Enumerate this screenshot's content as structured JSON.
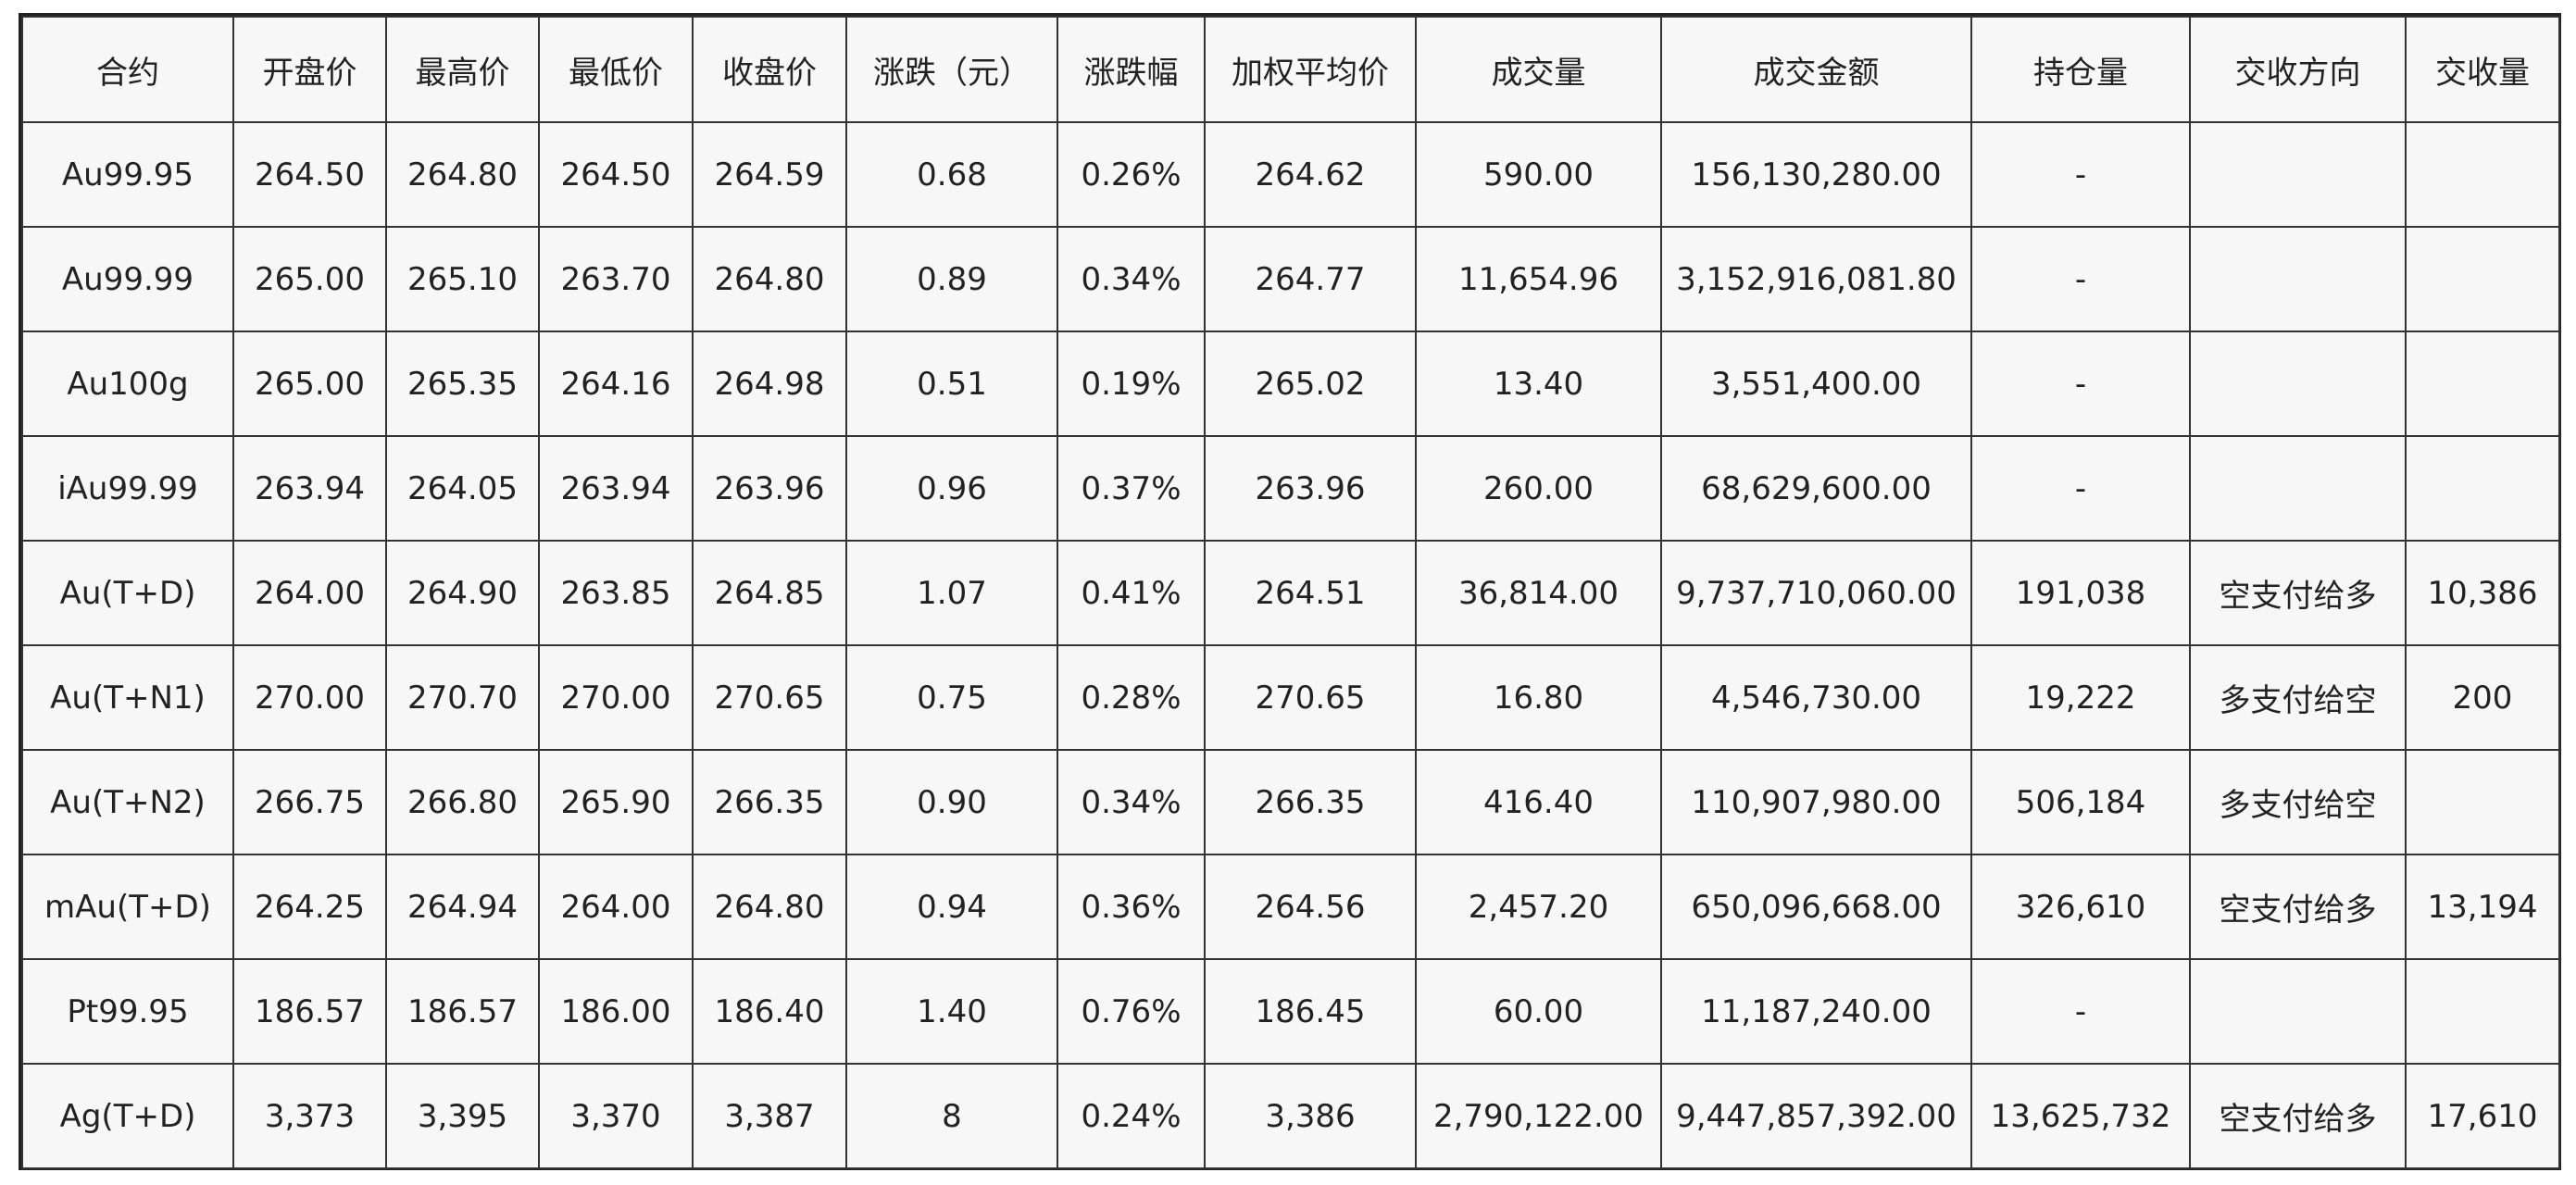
{
  "table": {
    "columns": [
      "合约",
      "开盘价",
      "最高价",
      "最低价",
      "收盘价",
      "涨跌（元）",
      "涨跌幅",
      "加权平均价",
      "成交量",
      "成交金额",
      "持仓量",
      "交收方向",
      "交收量"
    ],
    "rows": [
      [
        "Au99.95",
        "264.50",
        "264.80",
        "264.50",
        "264.59",
        "0.68",
        "0.26%",
        "264.62",
        "590.00",
        "156,130,280.00",
        "-",
        "",
        ""
      ],
      [
        "Au99.99",
        "265.00",
        "265.10",
        "263.70",
        "264.80",
        "0.89",
        "0.34%",
        "264.77",
        "11,654.96",
        "3,152,916,081.80",
        "-",
        "",
        ""
      ],
      [
        "Au100g",
        "265.00",
        "265.35",
        "264.16",
        "264.98",
        "0.51",
        "0.19%",
        "265.02",
        "13.40",
        "3,551,400.00",
        "-",
        "",
        ""
      ],
      [
        "iAu99.99",
        "263.94",
        "264.05",
        "263.94",
        "263.96",
        "0.96",
        "0.37%",
        "263.96",
        "260.00",
        "68,629,600.00",
        "-",
        "",
        ""
      ],
      [
        "Au(T+D)",
        "264.00",
        "264.90",
        "263.85",
        "264.85",
        "1.07",
        "0.41%",
        "264.51",
        "36,814.00",
        "9,737,710,060.00",
        "191,038",
        "空支付给多",
        "10,386"
      ],
      [
        "Au(T+N1)",
        "270.00",
        "270.70",
        "270.00",
        "270.65",
        "0.75",
        "0.28%",
        "270.65",
        "16.80",
        "4,546,730.00",
        "19,222",
        "多支付给空",
        "200"
      ],
      [
        "Au(T+N2)",
        "266.75",
        "266.80",
        "265.90",
        "266.35",
        "0.90",
        "0.34%",
        "266.35",
        "416.40",
        "110,907,980.00",
        "506,184",
        "多支付给空",
        ""
      ],
      [
        "mAu(T+D)",
        "264.25",
        "264.94",
        "264.00",
        "264.80",
        "0.94",
        "0.36%",
        "264.56",
        "2,457.20",
        "650,096,668.00",
        "326,610",
        "空支付给多",
        "13,194"
      ],
      [
        "Pt99.95",
        "186.57",
        "186.57",
        "186.00",
        "186.40",
        "1.40",
        "0.76%",
        "186.45",
        "60.00",
        "11,187,240.00",
        "-",
        "",
        ""
      ],
      [
        "Ag(T+D)",
        "3,373",
        "3,395",
        "3,370",
        "3,387",
        "8",
        "0.24%",
        "3,386",
        "2,790,122.00",
        "9,447,857,392.00",
        "13,625,732",
        "空支付给多",
        "17,610"
      ]
    ]
  }
}
